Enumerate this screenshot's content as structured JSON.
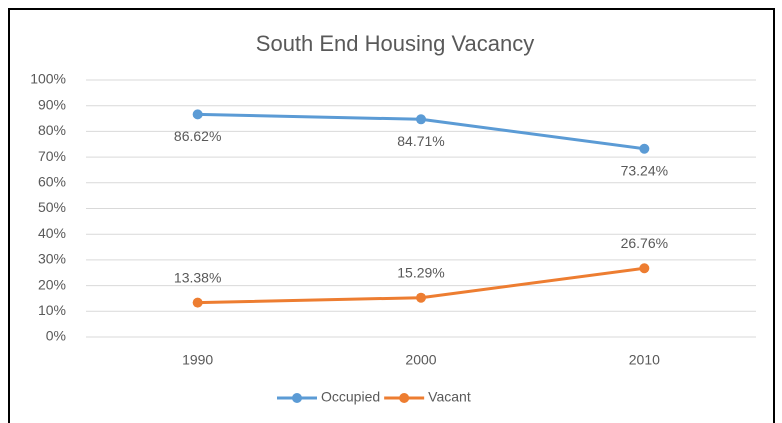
{
  "chart_data": {
    "type": "line",
    "title": "South End Housing Vacancy",
    "categories": [
      "1990",
      "2000",
      "2010"
    ],
    "series": [
      {
        "name": "Occupied",
        "color": "#5b9bd5",
        "values": [
          86.62,
          84.71,
          73.24
        ],
        "value_labels": [
          "86.62%",
          "84.71%",
          "73.24%"
        ]
      },
      {
        "name": "Vacant",
        "color": "#ed7d31",
        "values": [
          13.38,
          15.29,
          26.76
        ],
        "value_labels": [
          "13.38%",
          "15.29%",
          "26.76%"
        ]
      }
    ],
    "ylim": [
      0,
      100
    ],
    "yticks": [
      {
        "value": 0,
        "label": "0%"
      },
      {
        "value": 10,
        "label": "10%"
      },
      {
        "value": 20,
        "label": "20%"
      },
      {
        "value": 30,
        "label": "30%"
      },
      {
        "value": 40,
        "label": "40%"
      },
      {
        "value": 50,
        "label": "50%"
      },
      {
        "value": 60,
        "label": "60%"
      },
      {
        "value": 70,
        "label": "70%"
      },
      {
        "value": 80,
        "label": "80%"
      },
      {
        "value": 90,
        "label": "90%"
      },
      {
        "value": 100,
        "label": "100%"
      }
    ],
    "grid": true,
    "legend": "bottom"
  }
}
